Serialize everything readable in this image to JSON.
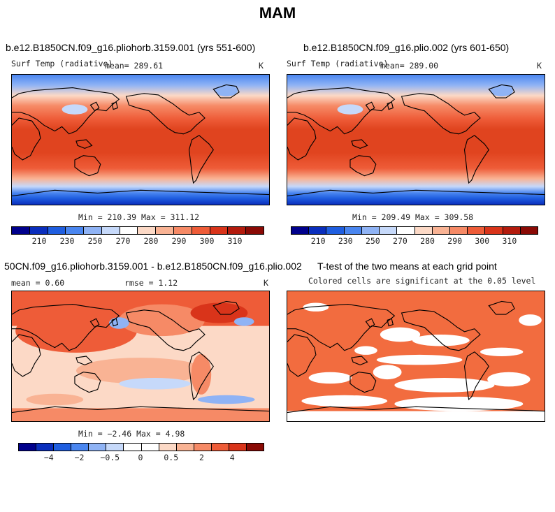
{
  "title": "MAM",
  "panels": [
    {
      "title": "b.e12.B1850CN.f09_g16.pliohorb.3159.001 (yrs 551-600)",
      "left_label": "Surf Temp (radiative)",
      "center_label": "mean= 289.61",
      "right_label": "K",
      "minmax": "Min = 210.39 Max = 311.12",
      "ticks": [
        "210",
        "230",
        "250",
        "270",
        "280",
        "290",
        "300",
        "310"
      ]
    },
    {
      "title": "b.e12.B1850CN.f09_g16.plio.002 (yrs 601-650)",
      "left_label": "Surf Temp (radiative)",
      "center_label": "mean= 289.00",
      "right_label": "K",
      "minmax": "Min = 209.49 Max = 309.58",
      "ticks": [
        "210",
        "230",
        "250",
        "270",
        "280",
        "290",
        "300",
        "310"
      ]
    },
    {
      "title": "50CN.f09_g16.pliohorb.3159.001 - b.e12.B1850CN.f09_g16.plio.002",
      "left_label": "mean =   0.60",
      "center_label": "rmse =   1.12",
      "right_label": "K",
      "minmax": "Min =  −2.46 Max =   4.98",
      "ticks": [
        "−4",
        "−2",
        "−0.5",
        "0",
        "0.5",
        "2",
        "4"
      ]
    },
    {
      "title": "T-test of the two means at each grid point",
      "center_label": "Colored cells are significant at the 0.05 level"
    }
  ],
  "colors": {
    "abs_scale": [
      "#00008c",
      "#0a2ebd",
      "#1f5ee0",
      "#4a86f0",
      "#8fb3f5",
      "#c6d9fa",
      "#ffffff",
      "#fcd9c6",
      "#f9b394",
      "#f68a66",
      "#ee5c38",
      "#d9341a",
      "#b31b0d",
      "#8a0a05"
    ],
    "diff_scale": [
      "#00008c",
      "#0a2ebd",
      "#1f5ee0",
      "#4a86f0",
      "#8fb3f5",
      "#c6d9fa",
      "#ffffff",
      "#ffffff",
      "#fcd9c6",
      "#f9b394",
      "#f68a66",
      "#ee5c38",
      "#d9341a",
      "#8a0a05"
    ],
    "significant": "#f26c3f"
  },
  "chart_data": [
    {
      "type": "heatmap",
      "title": "b.e12.B1850CN.f09_g16.pliohorb.3159.001 (yrs 551-600)",
      "variable": "Surf Temp (radiative)",
      "units": "K",
      "mean": 289.61,
      "min": 210.39,
      "max": 311.12,
      "colorbar_ticks": [
        210,
        230,
        250,
        270,
        280,
        290,
        300,
        310
      ]
    },
    {
      "type": "heatmap",
      "title": "b.e12.B1850CN.f09_g16.plio.002 (yrs 601-650)",
      "variable": "Surf Temp (radiative)",
      "units": "K",
      "mean": 289.0,
      "min": 209.49,
      "max": 309.58,
      "colorbar_ticks": [
        210,
        230,
        250,
        270,
        280,
        290,
        300,
        310
      ]
    },
    {
      "type": "heatmap",
      "title": "50CN.f09_g16.pliohorb.3159.001 - b.e12.B1850CN.f09_g16.plio.002",
      "units": "K",
      "mean": 0.6,
      "rmse": 1.12,
      "min": -2.46,
      "max": 4.98,
      "colorbar_ticks": [
        -4,
        -2,
        -0.5,
        0,
        0.5,
        2,
        4
      ]
    },
    {
      "type": "heatmap",
      "title": "T-test of the two means at each grid point",
      "note": "Colored cells are significant at the 0.05 level"
    }
  ]
}
